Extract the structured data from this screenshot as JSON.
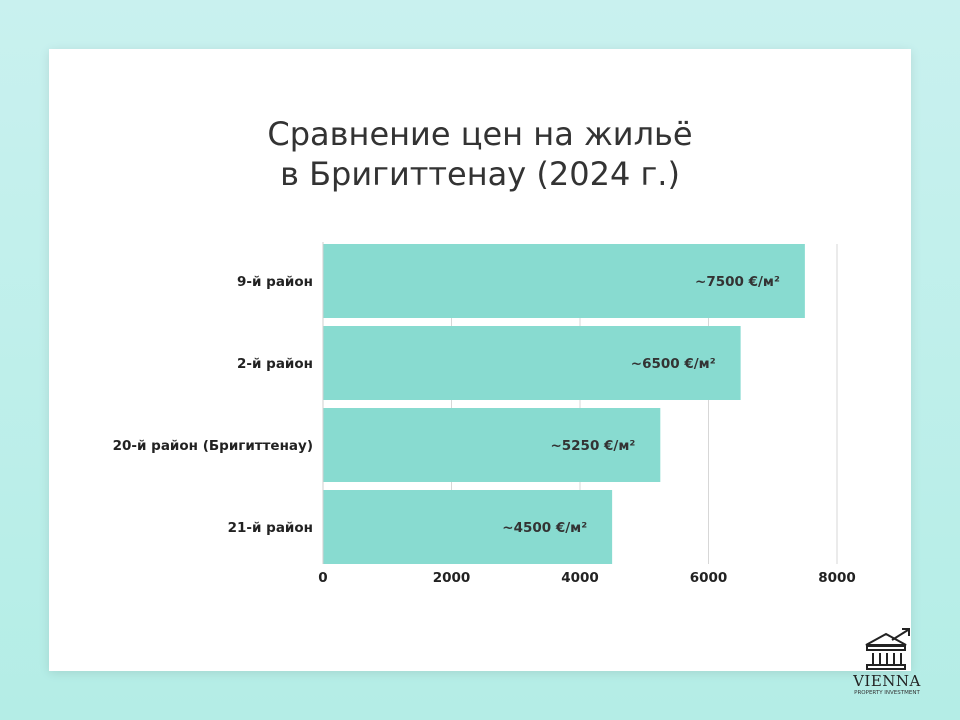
{
  "chart_data": {
    "type": "bar",
    "orientation": "horizontal",
    "title": [
      "Сравнение цен на жильё",
      "в Бригиттенау (2024 г.)"
    ],
    "categories": [
      "9-й район",
      "2-й район",
      "20-й район (Бригиттенау)",
      "21-й район"
    ],
    "values": [
      7500,
      6500,
      5250,
      4500
    ],
    "data_labels": [
      "~7500 €/м²",
      "~6500 €/м²",
      "~5250 €/м²",
      "~4500 €/м²"
    ],
    "x_ticks": [
      0,
      2000,
      4000,
      6000,
      8000
    ],
    "xlim": [
      0,
      8000
    ],
    "grid": true,
    "bar_color": "#88dbd0"
  },
  "brand": {
    "name": "VIENNA",
    "tagline": "PROPERTY INVESTMENT",
    "logo_icon": "building-with-arrow-icon"
  }
}
